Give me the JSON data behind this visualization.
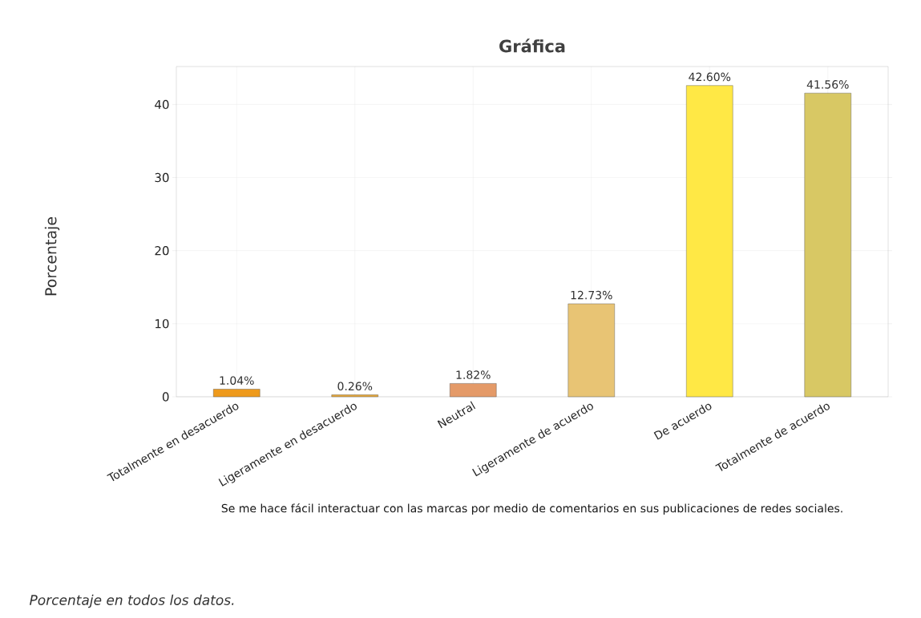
{
  "chart_data": {
    "type": "bar",
    "title": "Gráfica",
    "categories": [
      "Totalmente en desacuerdo",
      "Ligeramente en desacuerdo",
      "Neutral",
      "Ligeramente de acuerdo",
      "De acuerdo",
      "Totalmente de acuerdo"
    ],
    "values": [
      1.04,
      0.26,
      1.82,
      12.73,
      42.6,
      41.56
    ],
    "value_labels": [
      "1.04%",
      "0.26%",
      "1.82%",
      "12.73%",
      "42.60%",
      "41.56%"
    ],
    "colors": [
      "#ee9a1c",
      "#e8aa3c",
      "#e49a68",
      "#e8c474",
      "#ffe845",
      "#d8c864"
    ],
    "xlabel": "Se me hace fácil interactuar con las marcas por medio de comentarios en sus publicaciones de redes sociales.",
    "ylabel": "Porcentaje",
    "annotations": [
      "Porcentaje en todos los datos."
    ],
    "ylim": [
      0,
      45.2
    ],
    "yticks": [
      0,
      10,
      20,
      30,
      40
    ],
    "grid": true
  }
}
